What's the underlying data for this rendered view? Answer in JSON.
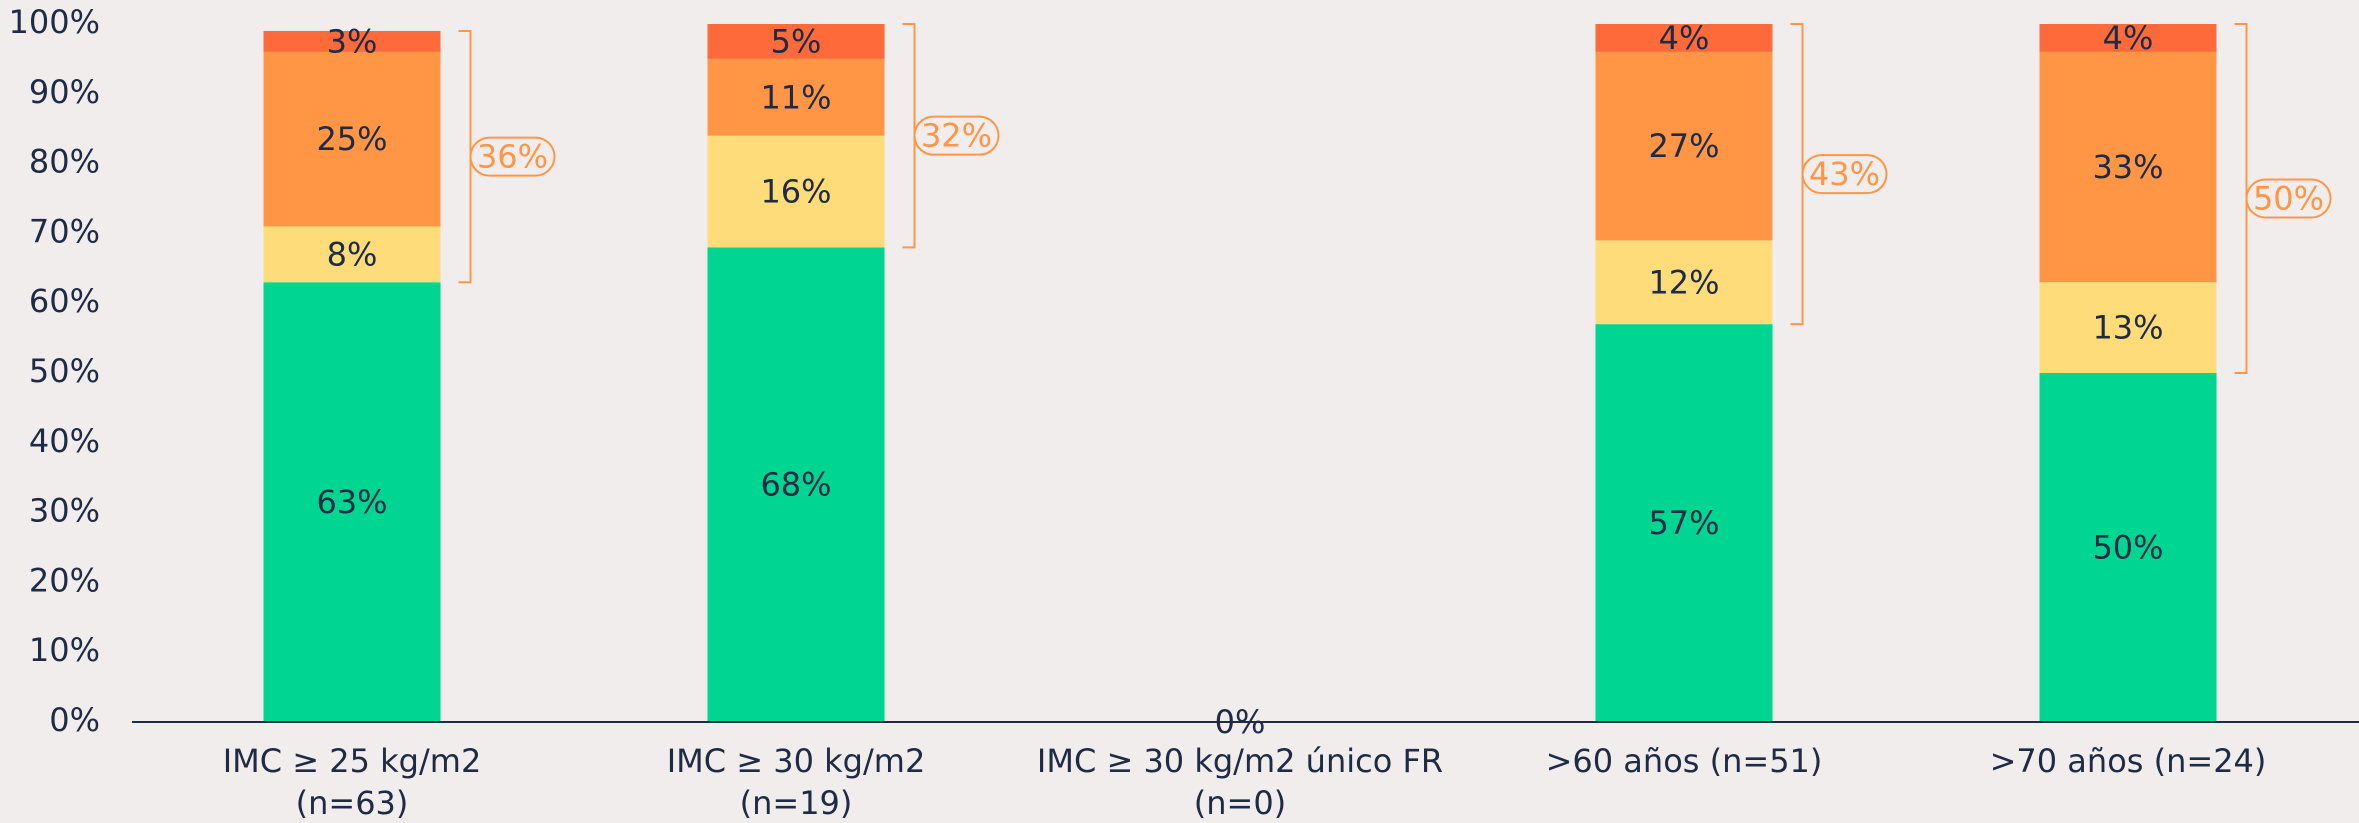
{
  "chart_data": {
    "type": "stacked_bar",
    "categories": [
      [
        "IMC ≥ 25 kg/m2",
        "(n=63)"
      ],
      [
        "IMC ≥ 30 kg/m2",
        "(n=19)"
      ],
      [
        "IMC ≥ 30 kg/m2 único FR",
        "(n=0)"
      ],
      [
        ">60 años (n=51)"
      ],
      [
        ">70 años (n=24)"
      ]
    ],
    "series": [
      {
        "color": "#00d692",
        "values": [
          63,
          68,
          0,
          57,
          50
        ],
        "value_labels": [
          "63%",
          "68%",
          "0%",
          "57%",
          "50%"
        ]
      },
      {
        "color": "#ffdc7a",
        "values": [
          8,
          16,
          null,
          12,
          13
        ],
        "value_labels": [
          "8%",
          "16%",
          null,
          "12%",
          "13%"
        ]
      },
      {
        "color": "#ff9646",
        "values": [
          25,
          11,
          null,
          27,
          33
        ],
        "value_labels": [
          "25%",
          "11%",
          null,
          "27%",
          "33%"
        ]
      },
      {
        "color": "#ff6a3a",
        "values": [
          3,
          5,
          null,
          4,
          4
        ],
        "value_labels": [
          "3%",
          "5%",
          null,
          "4%",
          "4%"
        ]
      }
    ],
    "brackets": {
      "color": "#ff9646",
      "values": [
        36,
        32,
        null,
        43,
        50
      ],
      "value_labels": [
        "36%",
        "32%",
        null,
        "43%",
        "50%"
      ]
    },
    "ylim": [
      0,
      100
    ],
    "yticks": [
      {
        "value": 0,
        "label": "0%"
      },
      {
        "value": 10,
        "label": "10%"
      },
      {
        "value": 20,
        "label": "20%"
      },
      {
        "value": 30,
        "label": "30%"
      },
      {
        "value": 40,
        "label": "40%"
      },
      {
        "value": 50,
        "label": "50%"
      },
      {
        "value": 60,
        "label": "60%"
      },
      {
        "value": 70,
        "label": "70%"
      },
      {
        "value": 80,
        "label": "80%"
      },
      {
        "value": 90,
        "label": "90%"
      },
      {
        "value": 100,
        "label": "100%"
      }
    ]
  }
}
